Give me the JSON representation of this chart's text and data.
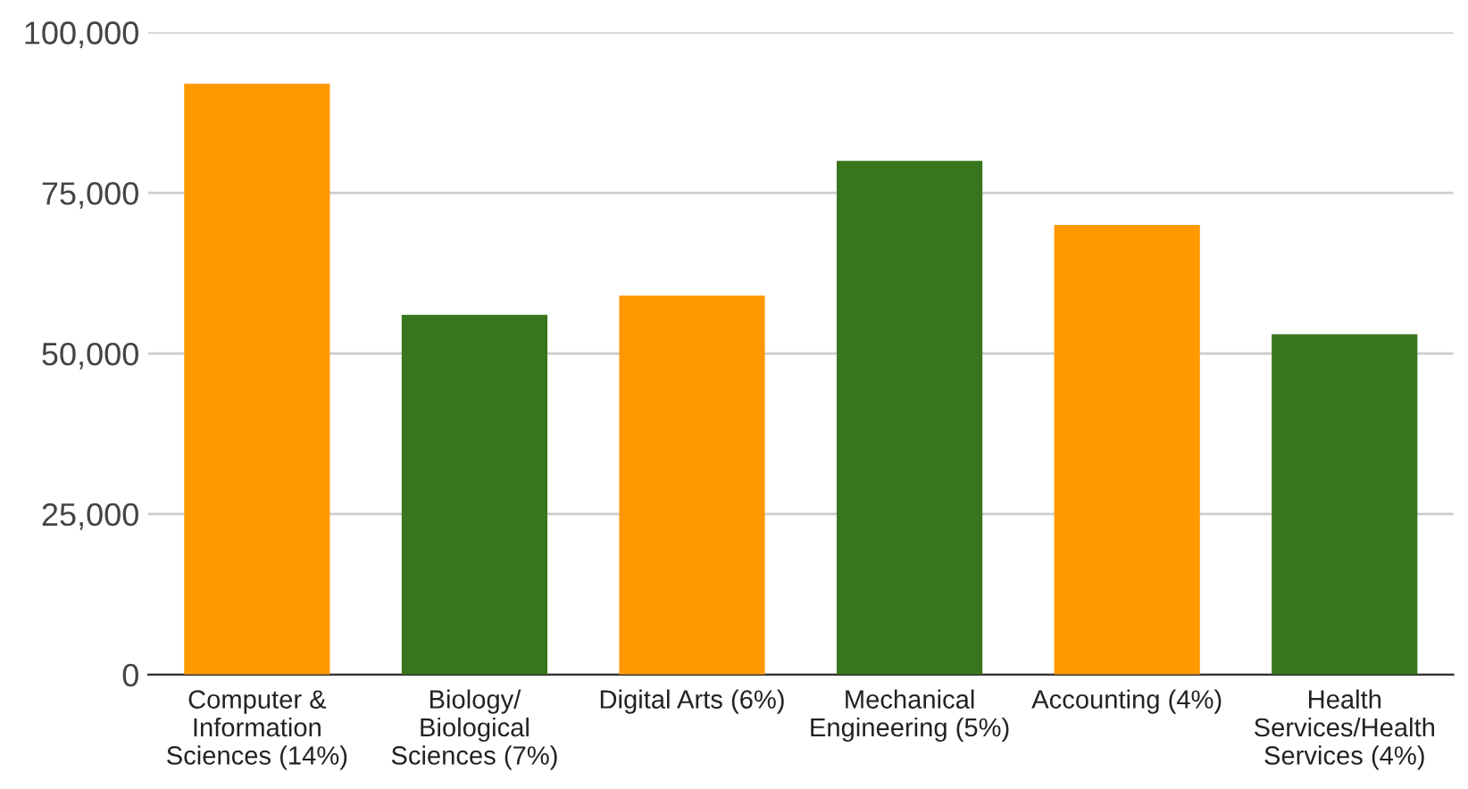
{
  "chart_data": {
    "type": "bar",
    "categories": [
      "Computer &\nInformation\nSciences (14%)",
      "Biology/\nBiological\nSciences (7%)",
      "Digital Arts (6%)",
      "Mechanical\nEngineering (5%)",
      "Accounting (4%)",
      "Health\nServices/Health\nServices (4%)"
    ],
    "values": [
      92000,
      56000,
      59000,
      80000,
      70000,
      53000
    ],
    "colors": [
      "#ff9900",
      "#38761d",
      "#ff9900",
      "#38761d",
      "#ff9900",
      "#38761d"
    ],
    "ylim": [
      0,
      100000
    ],
    "yticks": [
      {
        "value": 0,
        "label": "0"
      },
      {
        "value": 25000,
        "label": "25,000"
      },
      {
        "value": 50000,
        "label": "50,000"
      },
      {
        "value": 75000,
        "label": "75,000"
      },
      {
        "value": 100000,
        "label": "100,000"
      }
    ],
    "grid": "y"
  }
}
